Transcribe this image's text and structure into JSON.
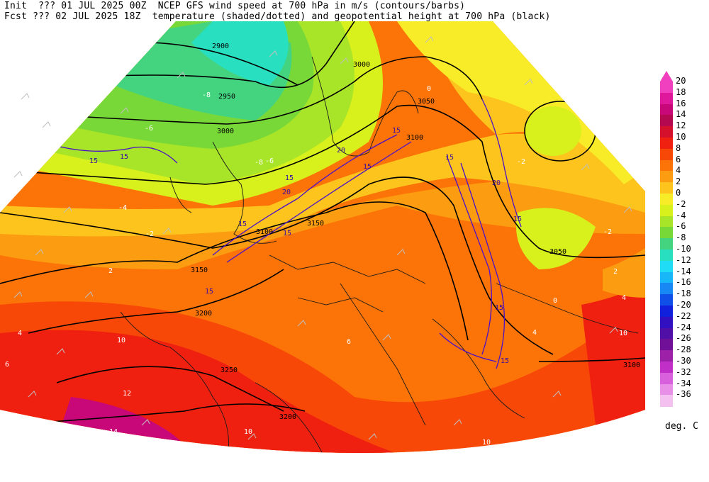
{
  "header": {
    "line1": "Init  ??? 01 JUL 2025 00Z  NCEP GFS wind speed at 700 hPa in m/s (contours/barbs)",
    "line2": "Fcst ??? 02 JUL 2025 18Z  temperature (shaded/dotted) and geopotential height at 700 hPa (black)"
  },
  "colorbar": {
    "units": "deg. C",
    "levels": [
      {
        "label": "20",
        "color": "#f040c0"
      },
      {
        "label": "18",
        "color": "#e0189c"
      },
      {
        "label": "16",
        "color": "#c80878"
      },
      {
        "label": "14",
        "color": "#b40850"
      },
      {
        "label": "12",
        "color": "#d4102c"
      },
      {
        "label": "10",
        "color": "#f02010"
      },
      {
        "label": "8",
        "color": "#f84808"
      },
      {
        "label": "6",
        "color": "#fc7408"
      },
      {
        "label": "4",
        "color": "#fc9c10"
      },
      {
        "label": "2",
        "color": "#fcc41c"
      },
      {
        "label": "0",
        "color": "#f8ec28"
      },
      {
        "label": "-2",
        "color": "#d8f01c"
      },
      {
        "label": "-4",
        "color": "#a8e428"
      },
      {
        "label": "-6",
        "color": "#78d838"
      },
      {
        "label": "-8",
        "color": "#44d480"
      },
      {
        "label": "-10",
        "color": "#28e0c0"
      },
      {
        "label": "-12",
        "color": "#20dcf4"
      },
      {
        "label": "-14",
        "color": "#18b8f8"
      },
      {
        "label": "-16",
        "color": "#1888f4"
      },
      {
        "label": "-18",
        "color": "#1050e8"
      },
      {
        "label": "-20",
        "color": "#1020dc"
      },
      {
        "label": "-22",
        "color": "#3010c0"
      },
      {
        "label": "-24",
        "color": "#5010a8"
      },
      {
        "label": "-26",
        "color": "#701098"
      },
      {
        "label": "-28",
        "color": "#9c20a8"
      },
      {
        "label": "-30",
        "color": "#c030c8"
      },
      {
        "label": "-32",
        "color": "#d860dc"
      },
      {
        "label": "-34",
        "color": "#e890e8"
      },
      {
        "label": "-36",
        "color": "#f4c0f0"
      }
    ]
  },
  "height_labels": [
    {
      "text": "2900"
    },
    {
      "text": "2950"
    },
    {
      "text": "3000"
    },
    {
      "text": "3000"
    },
    {
      "text": "3050"
    },
    {
      "text": "3100"
    },
    {
      "text": "3100"
    },
    {
      "text": "3150"
    },
    {
      "text": "3150"
    },
    {
      "text": "3200"
    },
    {
      "text": "3200"
    },
    {
      "text": "3250"
    },
    {
      "text": "3050"
    },
    {
      "text": "3100"
    }
  ],
  "wind_labels": [
    {
      "text": "15"
    },
    {
      "text": "15"
    },
    {
      "text": "20"
    },
    {
      "text": "15"
    },
    {
      "text": "15"
    },
    {
      "text": "15"
    },
    {
      "text": "20"
    },
    {
      "text": "15"
    },
    {
      "text": "15"
    },
    {
      "text": "15"
    },
    {
      "text": "15"
    },
    {
      "text": "20"
    },
    {
      "text": "15"
    },
    {
      "text": "15"
    },
    {
      "text": "15"
    }
  ],
  "temp_labels": [
    {
      "text": "-8"
    },
    {
      "text": "-6"
    },
    {
      "text": "-8"
    },
    {
      "text": "-6"
    },
    {
      "text": "-4"
    },
    {
      "text": "-2"
    },
    {
      "text": "2"
    },
    {
      "text": "4"
    },
    {
      "text": "6"
    },
    {
      "text": "10"
    },
    {
      "text": "12"
    },
    {
      "text": "14"
    },
    {
      "text": "0"
    },
    {
      "text": "-2"
    },
    {
      "text": "-2"
    },
    {
      "text": "2"
    },
    {
      "text": "4"
    },
    {
      "text": "10"
    },
    {
      "text": "10"
    },
    {
      "text": "6"
    },
    {
      "text": "4"
    },
    {
      "text": "0"
    },
    {
      "text": "-4"
    },
    {
      "text": "10"
    }
  ]
}
